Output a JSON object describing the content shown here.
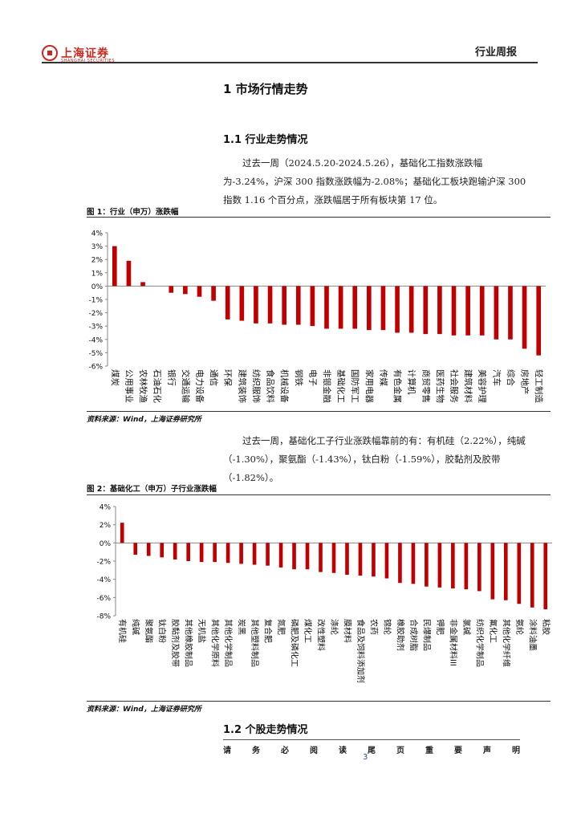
{
  "header": {
    "logo_cn": "上海证券",
    "logo_en": "SHANGHAI SECURITIES",
    "report_type": "行业周报"
  },
  "section1": {
    "title": "1  市场行情走势",
    "sub1_title": "1.1  行业走势情况",
    "para1": "过去一周（2024.5.20-2024.5.26），基础化工指数涨跌幅为-3.24%，沪深 300 指数涨跌幅为-2.08%；基础化工板块跑输沪深 300 指数 1.16 个百分点，涨跌幅居于所有板块第 17 位。",
    "para2": "过去一周，基础化工子行业涨跌幅靠前的有：有机硅（2.22%），纯碱（-1.30%），聚氨酯（-1.43%），钛白粉（-1.59%），胶黏剂及胶带（-1.82%）。",
    "sub2_title": "1.2  个股走势情况"
  },
  "figure1": {
    "title": "图 1：行业（申万）涨跌幅",
    "source": "资料来源：Wind，上海证券研究所"
  },
  "figure2": {
    "title": "图 2：基础化工（申万）子行业涨跌幅",
    "source": "资料来源：Wind，上海证券研究所"
  },
  "footer": {
    "disclaimer_chars": [
      "请",
      "务",
      "必",
      "阅",
      "读",
      "尾",
      "页",
      "重",
      "要",
      "声",
      "明"
    ],
    "page_number": "3"
  },
  "colors": {
    "bar": "#c00000",
    "brand": "#c8281e"
  },
  "chart_data": [
    {
      "type": "bar",
      "categories": [
        "煤炭",
        "公用事业",
        "农林牧渔",
        "石油石化",
        "银行",
        "交通运输",
        "电力设备",
        "通信",
        "环保",
        "建筑装饰",
        "纺织服饰",
        "食品饮料",
        "机械设备",
        "钢铁",
        "电子",
        "非银金融",
        "基础化工",
        "国防军工",
        "家用电器",
        "传媒",
        "有色金属",
        "计算机",
        "商贸零售",
        "医药生物",
        "社会服务",
        "建筑材料",
        "美容护理",
        "汽车",
        "综合",
        "房地产",
        "轻工制造"
      ],
      "values": [
        3.0,
        1.9,
        0.3,
        0.0,
        -0.5,
        -0.6,
        -0.8,
        -1.1,
        -2.5,
        -2.6,
        -2.8,
        -2.8,
        -2.9,
        -2.9,
        -3.0,
        -3.2,
        -3.2,
        -3.2,
        -3.3,
        -3.3,
        -3.5,
        -3.5,
        -3.6,
        -3.6,
        -3.7,
        -3.7,
        -3.7,
        -4.0,
        -4.0,
        -4.7,
        -5.2
      ],
      "ylim": [
        -6,
        4
      ],
      "yticks": [
        "4%",
        "3%",
        "2%",
        "1%",
        "0%",
        "-1%",
        "-2%",
        "-3%",
        "-4%",
        "-5%",
        "-6%"
      ],
      "grid": false
    },
    {
      "type": "bar",
      "categories": [
        "有机硅",
        "纯碱",
        "聚氨酯",
        "钛白粉",
        "胶黏剂及胶带",
        "其他橡胶制品",
        "无机盐",
        "其他化学原料",
        "其他化学制品",
        "炭黑",
        "其他塑料制品",
        "复合肥",
        "氮肥",
        "磷肥及磷化工",
        "煤化工",
        "改性塑料",
        "涤纶",
        "膜材料",
        "食品及饲料添加剂",
        "农药",
        "锦纶",
        "橡胶助剂",
        "合成树脂",
        "民爆制品",
        "钾肥",
        "非金属材料III",
        "氯碱",
        "纺织化学制品",
        "氟化工",
        "其他化学纤维",
        "氨纶",
        "涂料油墨",
        "粘胶"
      ],
      "values": [
        2.22,
        -1.3,
        -1.43,
        -1.59,
        -1.82,
        -2.0,
        -2.1,
        -2.1,
        -2.2,
        -2.3,
        -2.4,
        -2.5,
        -2.7,
        -2.9,
        -2.9,
        -3.2,
        -3.3,
        -3.5,
        -3.6,
        -3.7,
        -3.9,
        -4.4,
        -4.5,
        -4.8,
        -4.9,
        -5.0,
        -5.1,
        -5.3,
        -6.2,
        -6.3,
        -6.7,
        -7.1,
        -7.3
      ],
      "ylim": [
        -8,
        4
      ],
      "yticks": [
        "4%",
        "2%",
        "0%",
        "-2%",
        "-4%",
        "-6%",
        "-8%"
      ],
      "grid": false
    }
  ]
}
